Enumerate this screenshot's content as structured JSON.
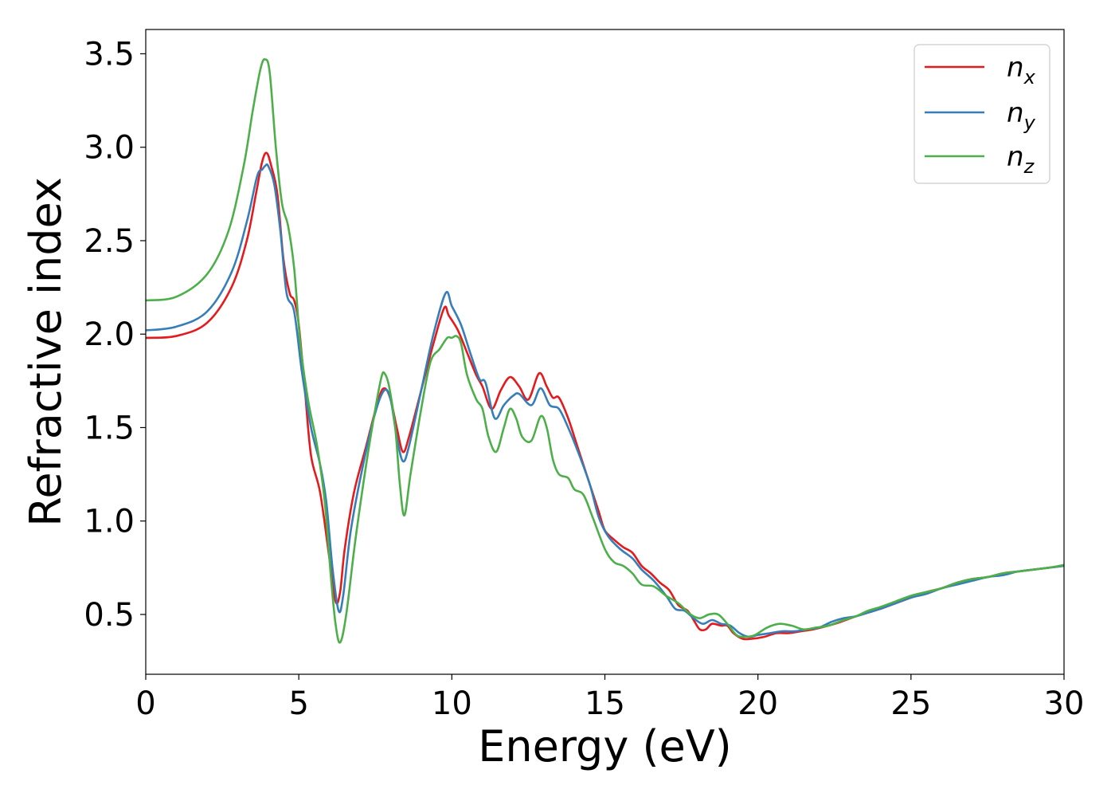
{
  "chart_data": {
    "type": "line",
    "title": "",
    "xlabel": "Energy (eV)",
    "ylabel": "Refractive index",
    "xlim": [
      0,
      30
    ],
    "ylim": [
      0.18,
      3.63
    ],
    "xticks": [
      0,
      5,
      10,
      15,
      20,
      25,
      30
    ],
    "xtick_labels": [
      "0",
      "5",
      "10",
      "15",
      "20",
      "25",
      "30"
    ],
    "yticks": [
      0.5,
      1.0,
      1.5,
      2.0,
      2.5,
      3.0,
      3.5
    ],
    "ytick_labels": [
      "0.5",
      "1.0",
      "1.5",
      "2.0",
      "2.5",
      "3.0",
      "3.5"
    ],
    "grid": false,
    "legend_position": "top-right",
    "series": [
      {
        "name": "n",
        "subscript": "x",
        "color": "#e41a1c",
        "points": [
          [
            0,
            1.98
          ],
          [
            1,
            1.99
          ],
          [
            2,
            2.06
          ],
          [
            2.8,
            2.25
          ],
          [
            3.3,
            2.5
          ],
          [
            3.6,
            2.75
          ],
          [
            3.8,
            2.92
          ],
          [
            3.95,
            2.97
          ],
          [
            4.1,
            2.9
          ],
          [
            4.3,
            2.75
          ],
          [
            4.5,
            2.4
          ],
          [
            4.7,
            2.22
          ],
          [
            4.85,
            2.18
          ],
          [
            5,
            2.05
          ],
          [
            5.2,
            1.7
          ],
          [
            5.4,
            1.35
          ],
          [
            5.7,
            1.15
          ],
          [
            6,
            0.8
          ],
          [
            6.2,
            0.57
          ],
          [
            6.35,
            0.62
          ],
          [
            6.5,
            0.85
          ],
          [
            6.8,
            1.15
          ],
          [
            7.2,
            1.4
          ],
          [
            7.6,
            1.65
          ],
          [
            7.8,
            1.71
          ],
          [
            8,
            1.65
          ],
          [
            8.2,
            1.5
          ],
          [
            8.4,
            1.37
          ],
          [
            8.6,
            1.45
          ],
          [
            9,
            1.7
          ],
          [
            9.4,
            1.95
          ],
          [
            9.75,
            2.14
          ],
          [
            9.9,
            2.1
          ],
          [
            10.2,
            2.02
          ],
          [
            10.5,
            1.9
          ],
          [
            10.8,
            1.78
          ],
          [
            11,
            1.72
          ],
          [
            11.3,
            1.6
          ],
          [
            11.6,
            1.7
          ],
          [
            11.9,
            1.77
          ],
          [
            12.2,
            1.72
          ],
          [
            12.5,
            1.65
          ],
          [
            12.85,
            1.79
          ],
          [
            13.1,
            1.72
          ],
          [
            13.3,
            1.66
          ],
          [
            13.5,
            1.66
          ],
          [
            13.8,
            1.55
          ],
          [
            14.1,
            1.4
          ],
          [
            14.5,
            1.2
          ],
          [
            14.8,
            1.05
          ],
          [
            15,
            0.95
          ],
          [
            15.3,
            0.9
          ],
          [
            15.6,
            0.86
          ],
          [
            15.9,
            0.83
          ],
          [
            16.2,
            0.76
          ],
          [
            16.5,
            0.72
          ],
          [
            16.8,
            0.67
          ],
          [
            17.1,
            0.63
          ],
          [
            17.4,
            0.55
          ],
          [
            17.7,
            0.52
          ],
          [
            17.9,
            0.47
          ],
          [
            18.1,
            0.42
          ],
          [
            18.3,
            0.42
          ],
          [
            18.5,
            0.45
          ],
          [
            18.8,
            0.44
          ],
          [
            19,
            0.44
          ],
          [
            19.2,
            0.4
          ],
          [
            19.5,
            0.37
          ],
          [
            19.8,
            0.37
          ],
          [
            20.2,
            0.38
          ],
          [
            20.6,
            0.4
          ],
          [
            21,
            0.4
          ],
          [
            21.4,
            0.41
          ],
          [
            21.8,
            0.42
          ],
          [
            22.3,
            0.44
          ],
          [
            22.7,
            0.46
          ],
          [
            23.2,
            0.49
          ],
          [
            23.6,
            0.51
          ],
          [
            24,
            0.53
          ],
          [
            24.5,
            0.56
          ],
          [
            25,
            0.59
          ],
          [
            25.5,
            0.62
          ],
          [
            26,
            0.64
          ],
          [
            26.5,
            0.67
          ],
          [
            27,
            0.69
          ],
          [
            27.5,
            0.7
          ],
          [
            28,
            0.72
          ],
          [
            28.5,
            0.73
          ],
          [
            29,
            0.74
          ],
          [
            29.5,
            0.75
          ],
          [
            30,
            0.76
          ]
        ]
      },
      {
        "name": "n",
        "subscript": "y",
        "color": "#377eb8",
        "points": [
          [
            0,
            2.02
          ],
          [
            1,
            2.04
          ],
          [
            2,
            2.12
          ],
          [
            2.8,
            2.33
          ],
          [
            3.3,
            2.6
          ],
          [
            3.6,
            2.82
          ],
          [
            3.7,
            2.87
          ],
          [
            3.8,
            2.88
          ],
          [
            3.9,
            2.9
          ],
          [
            4,
            2.9
          ],
          [
            4.2,
            2.8
          ],
          [
            4.4,
            2.55
          ],
          [
            4.6,
            2.22
          ],
          [
            4.85,
            2.12
          ],
          [
            5.1,
            1.8
          ],
          [
            5.4,
            1.5
          ],
          [
            5.7,
            1.3
          ],
          [
            5.9,
            1.1
          ],
          [
            6.1,
            0.75
          ],
          [
            6.3,
            0.52
          ],
          [
            6.45,
            0.6
          ],
          [
            6.7,
            0.95
          ],
          [
            7.1,
            1.3
          ],
          [
            7.5,
            1.58
          ],
          [
            7.8,
            1.7
          ],
          [
            8,
            1.65
          ],
          [
            8.2,
            1.45
          ],
          [
            8.4,
            1.32
          ],
          [
            8.6,
            1.4
          ],
          [
            9,
            1.7
          ],
          [
            9.4,
            2.0
          ],
          [
            9.8,
            2.22
          ],
          [
            10,
            2.15
          ],
          [
            10.3,
            2.05
          ],
          [
            10.6,
            1.9
          ],
          [
            10.9,
            1.76
          ],
          [
            11.1,
            1.74
          ],
          [
            11.4,
            1.55
          ],
          [
            11.7,
            1.62
          ],
          [
            12,
            1.67
          ],
          [
            12.2,
            1.68
          ],
          [
            12.6,
            1.62
          ],
          [
            12.9,
            1.71
          ],
          [
            13.2,
            1.62
          ],
          [
            13.5,
            1.6
          ],
          [
            13.8,
            1.5
          ],
          [
            14.1,
            1.38
          ],
          [
            14.5,
            1.2
          ],
          [
            14.8,
            1.02
          ],
          [
            15.1,
            0.92
          ],
          [
            15.5,
            0.85
          ],
          [
            15.9,
            0.8
          ],
          [
            16.2,
            0.74
          ],
          [
            16.6,
            0.68
          ],
          [
            17,
            0.6
          ],
          [
            17.3,
            0.53
          ],
          [
            17.6,
            0.52
          ],
          [
            17.9,
            0.48
          ],
          [
            18.2,
            0.45
          ],
          [
            18.5,
            0.47
          ],
          [
            18.8,
            0.45
          ],
          [
            19.1,
            0.44
          ],
          [
            19.4,
            0.4
          ],
          [
            19.7,
            0.38
          ],
          [
            20,
            0.39
          ],
          [
            20.4,
            0.4
          ],
          [
            20.8,
            0.41
          ],
          [
            21.2,
            0.41
          ],
          [
            21.6,
            0.42
          ],
          [
            22,
            0.43
          ],
          [
            22.4,
            0.46
          ],
          [
            22.8,
            0.48
          ],
          [
            23.2,
            0.49
          ],
          [
            23.6,
            0.51
          ],
          [
            24,
            0.53
          ],
          [
            24.5,
            0.56
          ],
          [
            25,
            0.59
          ],
          [
            25.5,
            0.61
          ],
          [
            26,
            0.64
          ],
          [
            26.5,
            0.66
          ],
          [
            27,
            0.68
          ],
          [
            27.5,
            0.7
          ],
          [
            28,
            0.71
          ],
          [
            28.5,
            0.73
          ],
          [
            29,
            0.74
          ],
          [
            29.5,
            0.75
          ],
          [
            30,
            0.76
          ]
        ]
      },
      {
        "name": "n",
        "subscript": "z",
        "color": "#4daf4a",
        "points": [
          [
            0,
            2.18
          ],
          [
            1,
            2.2
          ],
          [
            2,
            2.32
          ],
          [
            2.7,
            2.55
          ],
          [
            3.2,
            2.9
          ],
          [
            3.5,
            3.2
          ],
          [
            3.75,
            3.42
          ],
          [
            3.9,
            3.47
          ],
          [
            4.05,
            3.4
          ],
          [
            4.25,
            3.0
          ],
          [
            4.45,
            2.7
          ],
          [
            4.65,
            2.58
          ],
          [
            4.85,
            2.35
          ],
          [
            5.05,
            1.95
          ],
          [
            5.3,
            1.65
          ],
          [
            5.6,
            1.4
          ],
          [
            5.85,
            1.1
          ],
          [
            6.05,
            0.7
          ],
          [
            6.2,
            0.45
          ],
          [
            6.35,
            0.35
          ],
          [
            6.55,
            0.5
          ],
          [
            6.85,
            0.9
          ],
          [
            7.2,
            1.3
          ],
          [
            7.5,
            1.6
          ],
          [
            7.7,
            1.77
          ],
          [
            7.8,
            1.79
          ],
          [
            7.95,
            1.72
          ],
          [
            8.15,
            1.5
          ],
          [
            8.3,
            1.2
          ],
          [
            8.45,
            1.03
          ],
          [
            8.65,
            1.25
          ],
          [
            9,
            1.6
          ],
          [
            9.3,
            1.85
          ],
          [
            9.6,
            1.92
          ],
          [
            9.85,
            1.98
          ],
          [
            10,
            1.98
          ],
          [
            10.15,
            1.99
          ],
          [
            10.3,
            1.95
          ],
          [
            10.5,
            1.78
          ],
          [
            10.8,
            1.65
          ],
          [
            11,
            1.6
          ],
          [
            11.2,
            1.45
          ],
          [
            11.45,
            1.37
          ],
          [
            11.7,
            1.5
          ],
          [
            11.9,
            1.6
          ],
          [
            12.1,
            1.55
          ],
          [
            12.3,
            1.45
          ],
          [
            12.6,
            1.43
          ],
          [
            12.9,
            1.56
          ],
          [
            13.1,
            1.5
          ],
          [
            13.3,
            1.33
          ],
          [
            13.5,
            1.25
          ],
          [
            13.8,
            1.23
          ],
          [
            14,
            1.17
          ],
          [
            14.3,
            1.14
          ],
          [
            14.6,
            1.02
          ],
          [
            15,
            0.85
          ],
          [
            15.3,
            0.78
          ],
          [
            15.6,
            0.76
          ],
          [
            15.9,
            0.72
          ],
          [
            16.2,
            0.66
          ],
          [
            16.6,
            0.65
          ],
          [
            17,
            0.6
          ],
          [
            17.4,
            0.56
          ],
          [
            17.8,
            0.5
          ],
          [
            18.1,
            0.48
          ],
          [
            18.4,
            0.5
          ],
          [
            18.7,
            0.5
          ],
          [
            19,
            0.45
          ],
          [
            19.3,
            0.39
          ],
          [
            19.6,
            0.38
          ],
          [
            19.9,
            0.39
          ],
          [
            20.3,
            0.43
          ],
          [
            20.7,
            0.45
          ],
          [
            21.1,
            0.44
          ],
          [
            21.5,
            0.42
          ],
          [
            21.9,
            0.43
          ],
          [
            22.3,
            0.44
          ],
          [
            22.8,
            0.47
          ],
          [
            23.2,
            0.49
          ],
          [
            23.6,
            0.52
          ],
          [
            24,
            0.54
          ],
          [
            24.5,
            0.57
          ],
          [
            25,
            0.6
          ],
          [
            25.5,
            0.62
          ],
          [
            26,
            0.64
          ],
          [
            26.5,
            0.67
          ],
          [
            27,
            0.69
          ],
          [
            27.5,
            0.7
          ],
          [
            28,
            0.72
          ],
          [
            28.5,
            0.73
          ],
          [
            29,
            0.74
          ],
          [
            29.5,
            0.75
          ],
          [
            30,
            0.765
          ]
        ]
      }
    ]
  }
}
